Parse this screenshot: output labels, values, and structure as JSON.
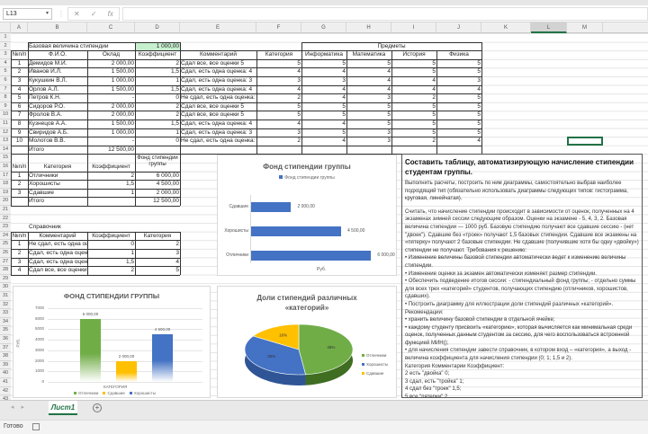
{
  "formula_bar": {
    "name_box": "L13",
    "cancel_icon": "✕",
    "enter_icon": "✓",
    "fx_label": "fx",
    "formula": ""
  },
  "columns": [
    "A",
    "B",
    "C",
    "D",
    "E",
    "F",
    "G",
    "H",
    "I",
    "J",
    "K",
    "L",
    "M"
  ],
  "selected_column": "L",
  "rows": [
    "1",
    "2",
    "3",
    "4",
    "5",
    "6",
    "7",
    "8",
    "9",
    "10",
    "11",
    "12",
    "13",
    "14",
    "15",
    "16",
    "17",
    "18",
    "19",
    "20",
    "21",
    "22",
    "23",
    "24",
    "25",
    "26",
    "27",
    "28",
    "29",
    "30",
    "31",
    "32",
    "33",
    "34",
    "35",
    "36",
    "37",
    "38",
    "39",
    "40",
    "41",
    "42",
    "43",
    "44"
  ],
  "base": {
    "label": "Базовая величина стипендии",
    "value": "1 000,00",
    "value_color": "#c6efce"
  },
  "main_table": {
    "subjects_header": "Предметы",
    "headers": [
      "№п/п",
      "Ф.И.О.",
      "Оклад",
      "Коэффициент",
      "Комментарий",
      "Категория",
      "Информатика",
      "Математика",
      "История",
      "Физика"
    ],
    "rows": [
      [
        "1",
        "Демидов М.И.",
        "2 000,00",
        "2",
        "Сдал все, все оценки 5",
        "5",
        "5",
        "5",
        "5",
        "5"
      ],
      [
        "2",
        "Иванов И.Л.",
        "1 500,00",
        "1,5",
        "Сдал, есть одна оценка: 4",
        "4",
        "4",
        "4",
        "5",
        "5"
      ],
      [
        "3",
        "Кукушкин В.Л.",
        "1 000,00",
        "1",
        "Сдал, есть одна оценка: 3",
        "3",
        "3",
        "4",
        "4",
        "3"
      ],
      [
        "4",
        "Орлов А.Л.",
        "1 500,00",
        "1,5",
        "Сдал, есть одна оценка: 4",
        "4",
        "4",
        "4",
        "4",
        "4"
      ],
      [
        "5",
        "Петров К.Н.",
        "-",
        "0",
        "Не сдал, есть одна оценка: 2",
        "2",
        "4",
        "3",
        "2",
        "5"
      ],
      [
        "6",
        "Сидоров Р.О.",
        "2 000,00",
        "2",
        "Сдал все, все оценки 5",
        "5",
        "5",
        "5",
        "5",
        "5"
      ],
      [
        "7",
        "Фролов В.А.",
        "2 000,00",
        "2",
        "Сдал все, все оценки 5",
        "5",
        "5",
        "5",
        "5",
        "5"
      ],
      [
        "8",
        "Кузнецов А.А.",
        "1 500,00",
        "1,5",
        "Сдал, есть одна оценка: 4",
        "4",
        "4",
        "5",
        "5",
        "5"
      ],
      [
        "9",
        "Свиридов А.Б.",
        "1 000,00",
        "1",
        "Сдал, есть одна оценка: 3",
        "3",
        "5",
        "3",
        "5",
        "5"
      ],
      [
        "10",
        "Молотов В.В.",
        "-",
        "0",
        "Не сдал, есть одна оценка: 2",
        "2",
        "4",
        "3",
        "2",
        "4"
      ]
    ],
    "total_label": "Итого",
    "total_value": "12 500,00"
  },
  "fund_table": {
    "headers": [
      "№п/п",
      "Категория",
      "Коэффициент",
      "Фонд стипендии группы"
    ],
    "rows": [
      [
        "1",
        "Отличники",
        "2",
        "6 000,00"
      ],
      [
        "2",
        "Хорошисты",
        "1,5",
        "4 500,00"
      ],
      [
        "3",
        "Сдавшие",
        "1",
        "2 000,00"
      ]
    ],
    "total_label": "Итого",
    "total_value": "12 500,00"
  },
  "reference_table": {
    "title": "Справочник",
    "headers": [
      "№п/п",
      "Комментарий",
      "Коэффициент",
      "Категория"
    ],
    "rows": [
      [
        "1",
        "Не сдал, есть одна оценка: 2",
        "0",
        "2"
      ],
      [
        "2",
        "Сдал, есть одна оценка: 3",
        "1",
        "3"
      ],
      [
        "3",
        "Сдал, есть одна оценка: 4",
        "1,5",
        "4"
      ],
      [
        "4",
        "Сдал все, все оценки 5",
        "2",
        "5"
      ]
    ]
  },
  "chart_data": [
    {
      "type": "bar",
      "orientation": "horizontal",
      "title": "Фонд стипендии группы",
      "legend": [
        "Фонд стипендии группы"
      ],
      "categories": [
        "Отличники",
        "Хорошисты",
        "Сдавшие"
      ],
      "values": [
        6000,
        4500,
        2000
      ],
      "value_labels": [
        "6 000,00",
        "4 500,00",
        "2 000,00"
      ],
      "xlabel": "Руб.",
      "color": "#4472c4"
    },
    {
      "type": "bar",
      "title": "ФОНД СТИПЕНДИИ ГРУППЫ",
      "categories": [
        "КАТЕГОРИЯ"
      ],
      "series": [
        {
          "name": "Отличники",
          "values": [
            6000
          ],
          "label": "6 000,00",
          "color": "#70ad47"
        },
        {
          "name": "Сдавшие",
          "values": [
            2000
          ],
          "label": "2 000,00",
          "color": "#ffc000"
        },
        {
          "name": "Хорошисты",
          "values": [
            4500
          ],
          "label": "4 500,00",
          "color": "#4472c4"
        }
      ],
      "ylabel": "РУБ.",
      "xlabel": "КАТЕГОРИЯ",
      "yticks": [
        "0",
        "1000",
        "2000",
        "3000",
        "4000",
        "5000",
        "6000",
        "7000"
      ],
      "ylim": [
        0,
        7000
      ],
      "grid": true,
      "legend_position": "bottom"
    },
    {
      "type": "pie",
      "title": "Доли стипендий различных «категорий»",
      "categories": [
        "Отличники",
        "Хорошисты",
        "Сдавшие"
      ],
      "values": [
        48,
        36,
        16
      ],
      "labels": [
        "48%",
        "36%",
        "16%"
      ],
      "colors": [
        "#70ad47",
        "#4472c4",
        "#ffc000"
      ],
      "legend_position": "right"
    }
  ],
  "task": {
    "heading": "Составить таблицу, автоматизирующую начисление стипендии студентам группы.",
    "p1": "Выполнить расчеты, построить по ним диаграммы, самостоятельно выбрав наиболее подходящий тип (обязательно использовать диаграммы следующих типов: гистограмма, круговая, линейчатая).",
    "p2": "Считать, что начисление стипендии происходит в зависимости от оценок, полученных на 4 экзаменах зимней сессии следующим образом. Оценки на экзамене - 5, 4, 3, 2. Базовая величина стипендии — 1000 руб. Базовую стипендию получают все сдавшие сессию - (нет \"двоек\"). Сдавшие без «троек» получают 1,5 базовых стипендии. Сдавшие все экзамены на «пятерку» получают 2 базовые стипендии. Не сдавшие (получившие хотя бы одну «двойку») стипендии не получают. Требования к решению:",
    "bullets": [
      "• Изменение величины базовой стипендии автоматически ведет к изменению величины стипендии.",
      "• Изменение оценки за экзамен автоматически изменяет размер стипендии.",
      "• Обеспечить подведение итогов сессии: - стипендиальный фонд группы; - отдельно суммы для всех трех «категорий» студентов, получающих стипендию (отличников, хорошистов, сдавших).",
      "• Построить диаграмму для иллюстрации доли стипендий различных «категорий».",
      "Рекомендации:",
      "• хранить величину базовой стипендии в отдельной ячейке;",
      "• каждому студенту присвоить «категорию», которая вычисляется как минимальная среди оценок, полученных данным студентом за сессию, для чего воспользоваться встроенной функцией МИН();",
      "• для начисления стипендии завести справочник, в котором вход – «категория», а выход - величина коэффициента для начисления стипендии (0; 1; 1,5 и 2).",
      "Категория Комментарии Коэффициент:",
      " 2 есть \"двойка\" 0;",
      " 3 сдал, есть \"тройка\" 1;",
      " 4 сдал без \"троек\" 1,5;",
      " 5 все \"пятерки\" 2"
    ]
  },
  "sheet_tabs": {
    "active": "Лист1",
    "add_icon": "+"
  },
  "status": {
    "text": "Готово"
  }
}
